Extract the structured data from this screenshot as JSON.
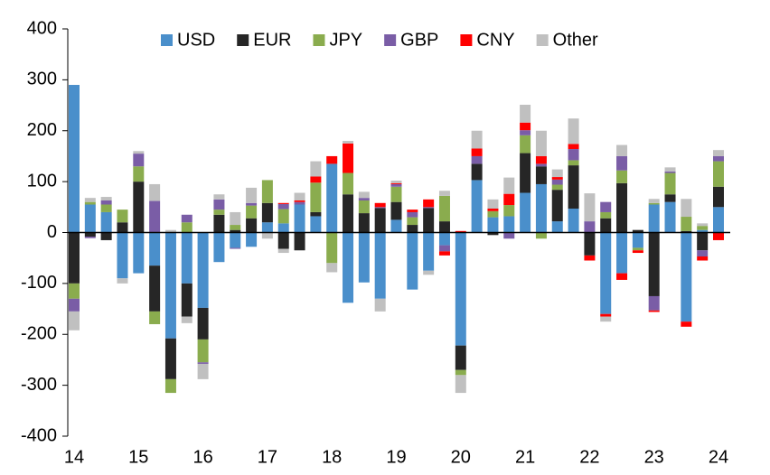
{
  "chart_data": {
    "type": "stacked-bar",
    "categories": [
      "14",
      null,
      null,
      null,
      "15",
      null,
      null,
      null,
      "16",
      null,
      null,
      null,
      "17",
      null,
      null,
      null,
      "18",
      null,
      null,
      null,
      "19",
      null,
      null,
      null,
      "20",
      null,
      null,
      null,
      "21",
      null,
      null,
      null,
      "22",
      null,
      null,
      null,
      "23",
      null,
      null,
      null,
      "24"
    ],
    "series": [
      {
        "name": "USD",
        "color": "#4a8fcb",
        "values": [
          290,
          55,
          40,
          -90,
          -80,
          -65,
          -208,
          -100,
          -148,
          -58,
          -30,
          -28,
          20,
          18,
          55,
          32,
          135,
          -138,
          -98,
          -130,
          25,
          -112,
          -75,
          -25,
          -222,
          103,
          30,
          32,
          78,
          95,
          22,
          47,
          0,
          -160,
          -80,
          -30,
          55,
          60,
          -175,
          5,
          50
        ]
      },
      {
        "name": "EUR",
        "color": "#262626",
        "values": [
          -100,
          -8,
          -15,
          20,
          100,
          -90,
          -80,
          -65,
          -62,
          35,
          5,
          28,
          38,
          -32,
          -35,
          8,
          0,
          75,
          38,
          48,
          35,
          15,
          48,
          22,
          -48,
          32,
          -5,
          0,
          78,
          35,
          62,
          85,
          -45,
          28,
          97,
          5,
          -125,
          15,
          3,
          -35,
          40
        ]
      },
      {
        "name": "JPY",
        "color": "#8aac4e",
        "values": [
          -30,
          5,
          15,
          25,
          30,
          -25,
          -27,
          20,
          -45,
          10,
          10,
          25,
          45,
          28,
          0,
          58,
          -60,
          42,
          25,
          0,
          30,
          15,
          0,
          50,
          -10,
          0,
          12,
          22,
          35,
          -12,
          10,
          10,
          0,
          12,
          25,
          -5,
          3,
          42,
          28,
          8,
          50
        ]
      },
      {
        "name": "GBP",
        "color": "#7a5da6",
        "values": [
          -25,
          -3,
          8,
          0,
          25,
          62,
          0,
          15,
          -3,
          20,
          -2,
          5,
          0,
          10,
          5,
          0,
          0,
          0,
          5,
          2,
          5,
          10,
          2,
          -12,
          0,
          15,
          0,
          -12,
          10,
          5,
          10,
          22,
          22,
          20,
          28,
          0,
          -28,
          3,
          0,
          -12,
          10
        ]
      },
      {
        "name": "CNY",
        "color": "#ff0000",
        "values": [
          0,
          0,
          0,
          0,
          0,
          0,
          0,
          0,
          0,
          0,
          0,
          0,
          0,
          2,
          3,
          12,
          15,
          58,
          0,
          8,
          2,
          5,
          15,
          -8,
          3,
          15,
          5,
          22,
          15,
          15,
          5,
          10,
          -10,
          -5,
          -13,
          -5,
          -3,
          0,
          -10,
          -8,
          -15
        ]
      },
      {
        "name": "Other",
        "color": "#c0c0c0",
        "values": [
          -37,
          8,
          7,
          -10,
          5,
          33,
          5,
          -13,
          -30,
          10,
          25,
          30,
          -12,
          -8,
          15,
          30,
          -18,
          5,
          12,
          -25,
          5,
          0,
          -8,
          10,
          -35,
          35,
          18,
          32,
          35,
          50,
          15,
          50,
          55,
          -10,
          22,
          0,
          8,
          8,
          35,
          5,
          12
        ]
      }
    ],
    "ylim": [
      -400,
      400
    ],
    "yticks": [
      -400,
      -300,
      -200,
      -100,
      0,
      100,
      200,
      300,
      400
    ]
  }
}
